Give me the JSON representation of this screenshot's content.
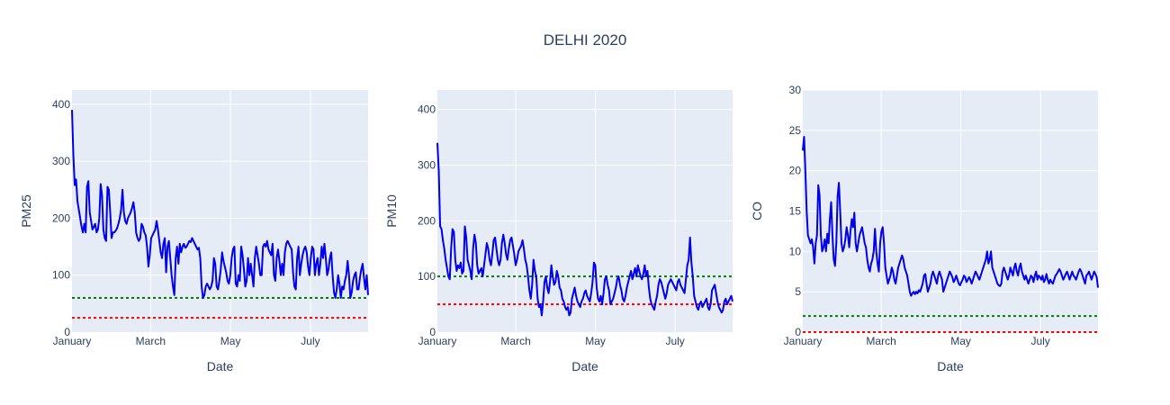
{
  "figure": {
    "title": "DELHI 2020",
    "plot_bgcolor": "#e5ecf6",
    "grid_color": "#ffffff",
    "text_color": "#2a3f5f"
  },
  "chart_data": [
    {
      "type": "line",
      "title": "",
      "xlabel": "Date",
      "ylabel": "PM25",
      "x_start": "2020-01-01",
      "x_end": "2020-08-14",
      "xlim": [
        "2020-01-01",
        "2020-08-14"
      ],
      "x_ticks": [
        {
          "date": "2020-01-01",
          "label": "January"
        },
        {
          "date": "2020-03-01",
          "label": "March"
        },
        {
          "date": "2020-05-01",
          "label": "May"
        },
        {
          "date": "2020-07-01",
          "label": "July"
        }
      ],
      "ylim": [
        0,
        425
      ],
      "y_ticks": [
        0,
        100,
        200,
        300,
        400
      ],
      "grid": true,
      "series": [
        {
          "color": "#0000ee",
          "values": [
            390,
            310,
            258,
            268,
            230,
            215,
            200,
            185,
            175,
            190,
            175,
            255,
            265,
            210,
            195,
            180,
            185,
            190,
            175,
            180,
            200,
            260,
            240,
            180,
            165,
            160,
            255,
            250,
            210,
            165,
            175,
            175,
            178,
            182,
            190,
            200,
            215,
            250,
            210,
            195,
            190,
            200,
            205,
            210,
            218,
            228,
            210,
            175,
            165,
            160,
            165,
            190,
            185,
            175,
            170,
            150,
            115,
            135,
            165,
            170,
            175,
            180,
            195,
            180,
            160,
            140,
            130,
            155,
            165,
            105,
            150,
            160,
            130,
            100,
            80,
            65,
            130,
            150,
            120,
            155,
            140,
            150,
            155,
            148,
            150,
            155,
            160,
            158,
            165,
            160,
            155,
            150,
            145,
            148,
            130,
            80,
            60,
            65,
            80,
            85,
            80,
            75,
            80,
            90,
            130,
            120,
            80,
            75,
            90,
            110,
            140,
            125,
            115,
            105,
            90,
            85,
            100,
            130,
            145,
            150,
            85,
            80,
            100,
            90,
            150,
            135,
            110,
            80,
            90,
            130,
            100,
            120,
            100,
            80,
            130,
            150,
            135,
            120,
            100,
            100,
            150,
            155,
            150,
            160,
            145,
            140,
            135,
            155,
            100,
            90,
            130,
            145,
            125,
            100,
            120,
            100,
            140,
            155,
            160,
            155,
            150,
            145,
            105,
            80,
            75,
            130,
            150,
            100,
            120,
            135,
            145,
            150,
            140,
            115,
            100,
            130,
            150,
            145,
            100,
            120,
            130,
            100,
            120,
            150,
            130,
            155,
            130,
            100,
            110,
            130,
            140,
            100,
            70,
            60,
            75,
            100,
            85,
            60,
            80,
            75,
            90,
            100,
            125,
            100,
            60,
            70,
            90,
            100,
            105,
            75,
            75,
            95,
            110,
            120,
            95,
            75,
            100,
            65
          ]
        }
      ],
      "reference_lines": [
        {
          "y": 60,
          "color": "#008000",
          "dash": "dot"
        },
        {
          "y": 25,
          "color": "#ff0000",
          "dash": "dot"
        }
      ]
    },
    {
      "type": "line",
      "title": "",
      "xlabel": "Date",
      "ylabel": "PM10",
      "x_start": "2020-01-01",
      "x_end": "2020-08-14",
      "xlim": [
        "2020-01-01",
        "2020-08-14"
      ],
      "x_ticks": [
        {
          "date": "2020-01-01",
          "label": "January"
        },
        {
          "date": "2020-03-01",
          "label": "March"
        },
        {
          "date": "2020-05-01",
          "label": "May"
        },
        {
          "date": "2020-07-01",
          "label": "July"
        }
      ],
      "ylim": [
        0,
        435
      ],
      "y_ticks": [
        0,
        100,
        200,
        300,
        400
      ],
      "grid": true,
      "series": [
        {
          "color": "#0000ee",
          "values": [
            340,
            290,
            190,
            185,
            165,
            150,
            130,
            115,
            100,
            95,
            150,
            185,
            180,
            130,
            110,
            120,
            115,
            125,
            105,
            110,
            190,
            170,
            130,
            120,
            110,
            95,
            150,
            175,
            160,
            120,
            105,
            110,
            115,
            100,
            120,
            140,
            160,
            150,
            130,
            120,
            140,
            165,
            170,
            150,
            130,
            120,
            130,
            160,
            175,
            160,
            140,
            130,
            150,
            165,
            170,
            155,
            140,
            120,
            130,
            145,
            150,
            155,
            165,
            150,
            130,
            120,
            100,
            75,
            60,
            85,
            130,
            110,
            100,
            60,
            45,
            50,
            30,
            55,
            90,
            100,
            80,
            70,
            90,
            120,
            100,
            85,
            90,
            110,
            100,
            80,
            75,
            60,
            55,
            45,
            40,
            45,
            30,
            35,
            60,
            70,
            80,
            65,
            55,
            50,
            45,
            55,
            60,
            70,
            75,
            65,
            60,
            55,
            70,
            90,
            125,
            120,
            80,
            60,
            55,
            65,
            50,
            70,
            95,
            100,
            85,
            75,
            50,
            55,
            60,
            70,
            80,
            95,
            100,
            85,
            75,
            60,
            55,
            65,
            80,
            90,
            100,
            110,
            95,
            105,
            115,
            100,
            120,
            110,
            100,
            95,
            105,
            120,
            100,
            110,
            80,
            60,
            50,
            45,
            40,
            55,
            65,
            85,
            95,
            90,
            80,
            70,
            60,
            70,
            85,
            90,
            95,
            90,
            85,
            80,
            75,
            90,
            95,
            85,
            80,
            75,
            70,
            95,
            120,
            130,
            170,
            125,
            100,
            65,
            55,
            45,
            40,
            50,
            55,
            45,
            50,
            55,
            60,
            45,
            40,
            50,
            75,
            80,
            85,
            70,
            55,
            45,
            40,
            35,
            40,
            55,
            60,
            50,
            55,
            60,
            65,
            55
          ]
        }
      ],
      "reference_lines": [
        {
          "y": 100,
          "color": "#008000",
          "dash": "dot"
        },
        {
          "y": 50,
          "color": "#ff0000",
          "dash": "dot"
        }
      ]
    },
    {
      "type": "line",
      "title": "",
      "xlabel": "Date",
      "ylabel": "CO",
      "x_start": "2020-01-01",
      "x_end": "2020-08-14",
      "xlim": [
        "2020-01-01",
        "2020-08-14"
      ],
      "x_ticks": [
        {
          "date": "2020-01-01",
          "label": "January"
        },
        {
          "date": "2020-03-01",
          "label": "March"
        },
        {
          "date": "2020-05-01",
          "label": "May"
        },
        {
          "date": "2020-07-01",
          "label": "July"
        }
      ],
      "ylim": [
        0,
        30
      ],
      "y_ticks": [
        0,
        5,
        10,
        15,
        20,
        25,
        30
      ],
      "grid": true,
      "series": [
        {
          "color": "#0000ee",
          "values": [
            22.5,
            24.2,
            20,
            15,
            12,
            11.5,
            11,
            11.5,
            10.5,
            8.5,
            11,
            12,
            18.2,
            17,
            12,
            10,
            10.5,
            11.5,
            10,
            12.2,
            11,
            14,
            16.1,
            12,
            9,
            8.2,
            11,
            16.8,
            18.5,
            15,
            11,
            10,
            10.5,
            11.5,
            13,
            12,
            10.5,
            12.5,
            14,
            13,
            14.8,
            11,
            10,
            11,
            12,
            12.5,
            13,
            12,
            11,
            10.5,
            9,
            8,
            7.5,
            8.5,
            9,
            10,
            12.8,
            10,
            8.5,
            7.5,
            11,
            12.5,
            13,
            11,
            8,
            7,
            6,
            6.5,
            7,
            8,
            7.5,
            6.5,
            6,
            7,
            8,
            8.5,
            9,
            9.5,
            9,
            8,
            7.5,
            7,
            6,
            5,
            4.5,
            4.8,
            5,
            4.7,
            5,
            4.8,
            5.2,
            5,
            5.5,
            6,
            7,
            7.2,
            6,
            5,
            5.5,
            6,
            7,
            7.5,
            7,
            6.5,
            6,
            7,
            7.5,
            7,
            6.5,
            5,
            5.5,
            6,
            6.5,
            7,
            7.5,
            7.2,
            6.8,
            6.2,
            6.5,
            7,
            6.5,
            6,
            5.8,
            6.2,
            6.5,
            7,
            6.8,
            6.2,
            6.5,
            6.8,
            6.5,
            6,
            6.5,
            7,
            7.5,
            7.2,
            6.8,
            6.5,
            7,
            7.5,
            8,
            8.5,
            9,
            10,
            8.5,
            9,
            10,
            8,
            7.5,
            7,
            6.5,
            6,
            5.8,
            5.7,
            6,
            7.5,
            8,
            7.5,
            7,
            6.5,
            7,
            8,
            7.5,
            7,
            8,
            8.5,
            7.5,
            7,
            8,
            8.5,
            7.5,
            7,
            6.5,
            7,
            6.5,
            6,
            6.5,
            7,
            6.8,
            6.2,
            7,
            7.5,
            6.5,
            7,
            6.8,
            6.5,
            7,
            6.2,
            6.5,
            7.2,
            6.5,
            6,
            6.5,
            6.2,
            6,
            6.5,
            7,
            7.2,
            7.5,
            7.8,
            7.5,
            7,
            6.5,
            6.8,
            7.2,
            7.5,
            7,
            6.5,
            7,
            7.5,
            7,
            6.8,
            6.5,
            7,
            7.5,
            7.8,
            7.5,
            7,
            6.5,
            6,
            7,
            7.2,
            7.5,
            7,
            6.5,
            7,
            7.5,
            7.2,
            6.8,
            5.5
          ]
        }
      ],
      "reference_lines": [
        {
          "y": 2,
          "color": "#008000",
          "dash": "dot"
        },
        {
          "y": 0,
          "color": "#ff0000",
          "dash": "dot"
        }
      ]
    }
  ]
}
